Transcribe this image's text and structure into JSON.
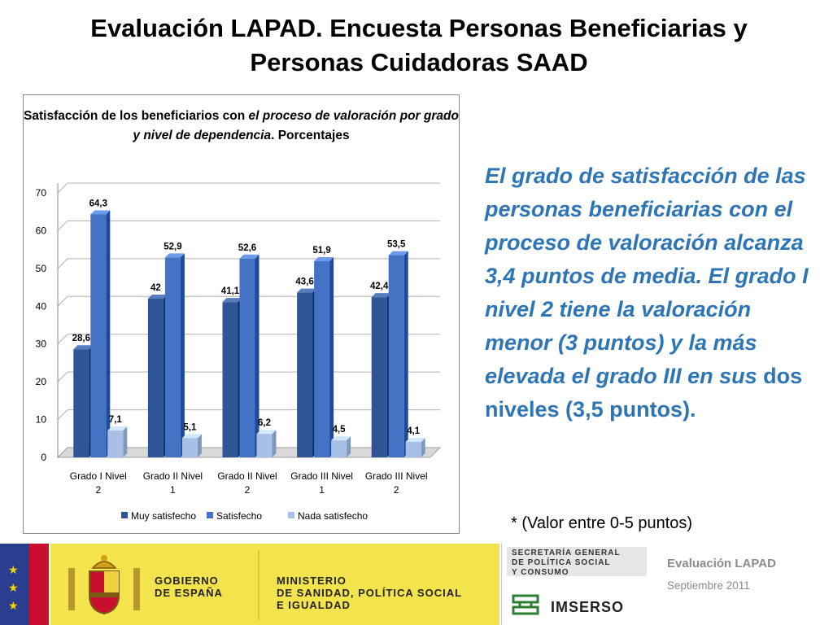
{
  "slide": {
    "title": "Evaluación LAPAD.  Encuesta Personas Beneficiarias y Personas  Cuidadoras SAAD",
    "commentary_main": "El grado de satisfacción de las personas beneficiarias con el proceso de valoración alcanza  3,4 puntos de media. El grado I nivel 2 tiene la valoración menor  (3 puntos) y la más elevada el grado III en sus ",
    "commentary_tail": "dos niveles (3,5 puntos).",
    "footnote": "* (Valor entre 0-5 puntos)"
  },
  "chart_data": {
    "type": "bar",
    "title_plain": "Satisfacción de los beneficiarios  con ",
    "title_italic": "el proceso de valoración por grado y nivel de dependencia",
    "title_end": ". Porcentajes",
    "categories": [
      [
        "Grado I Nivel",
        "2"
      ],
      [
        "Grado II Nivel",
        "1"
      ],
      [
        "Grado II Nivel",
        "2"
      ],
      [
        "Grado III Nivel",
        "1"
      ],
      [
        "Grado III Nivel",
        "2"
      ]
    ],
    "series": [
      {
        "name": "Muy satisfecho",
        "values": [
          28.6,
          42,
          41.1,
          43.6,
          42.4
        ],
        "labels": [
          "28,6",
          "42",
          "41,1",
          "43,6",
          "42,4"
        ],
        "color": "#2f5597"
      },
      {
        "name": "Satisfecho",
        "values": [
          64.3,
          52.9,
          52.6,
          51.9,
          53.5
        ],
        "labels": [
          "64,3",
          "52,9",
          "52,6",
          "51,9",
          "53,5"
        ],
        "color": "#4472c4"
      },
      {
        "name": "Nada satisfecho",
        "values": [
          7.1,
          5.1,
          6.2,
          4.5,
          4.1
        ],
        "labels": [
          "7,1",
          "5,1",
          "6,2",
          "4,5",
          "4,1"
        ],
        "color": "#a9c0e6"
      }
    ],
    "y_ticks": [
      "0",
      "10",
      "20",
      "30",
      "40",
      "50",
      "60",
      "70"
    ],
    "ylim": [
      0,
      70
    ],
    "grid": true,
    "legend_position": "bottom"
  },
  "footer": {
    "gov_line1": "GOBIERNO",
    "gov_line2": "DE ESPAÑA",
    "ministry_line1": "MINISTERIO",
    "ministry_line2": "DE SANIDAD, POLÍTICA SOCIAL",
    "ministry_line3": "E IGUALDAD",
    "secretaria_line1": "SECRETARÍA GENERAL",
    "secretaria_line2": "DE POLÍTICA SOCIAL",
    "secretaria_line3": "Y CONSUMO",
    "imserso": "IMSERSO",
    "eval_label": "Evaluación LAPAD",
    "date": "Septiembre 2011",
    "colors": {
      "flag_blue": "#2a3d8f",
      "flag_red": "#c8102e",
      "gov_yellow": "#f3e34c"
    }
  }
}
